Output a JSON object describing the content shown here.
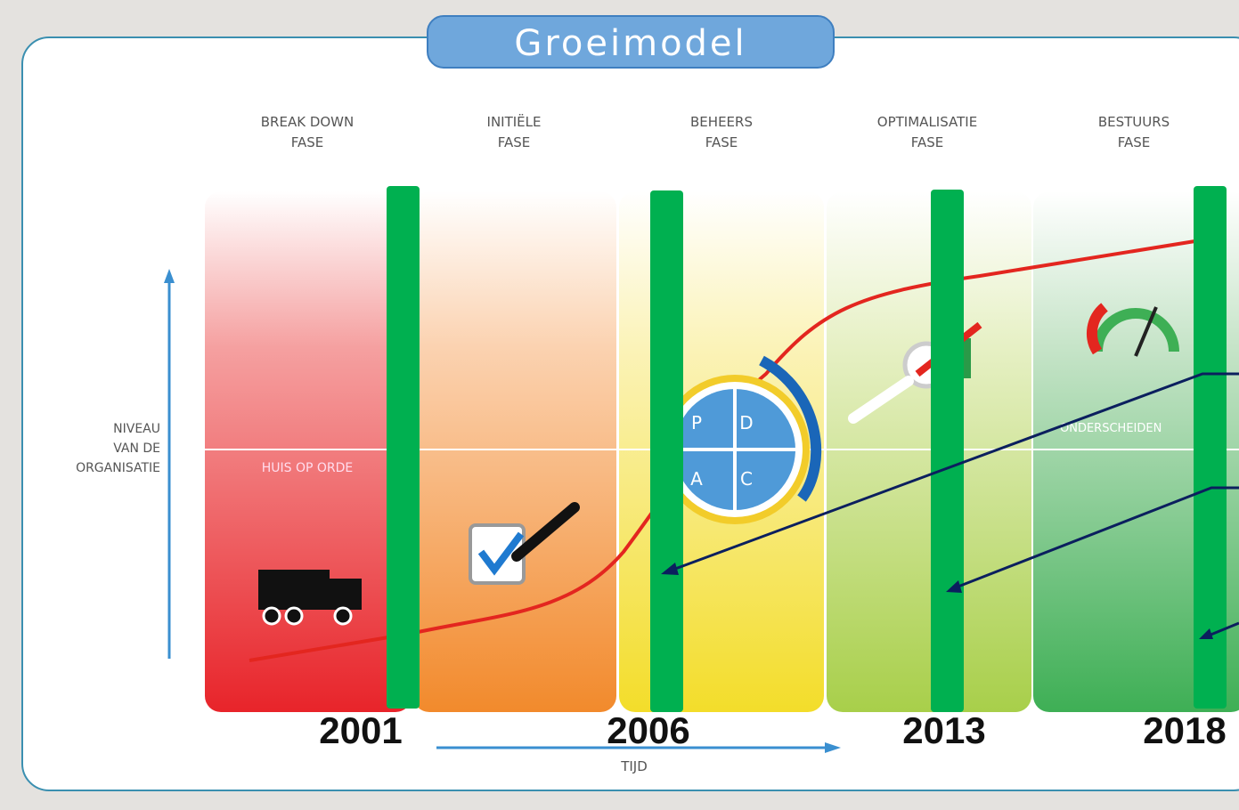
{
  "title": "Groeimodel",
  "phases": [
    {
      "line1": "BREAK DOWN",
      "line2": "FASE"
    },
    {
      "line1": "INITIËLE",
      "line2": "FASE"
    },
    {
      "line1": "BEHEERS",
      "line2": "FASE"
    },
    {
      "line1": "OPTIMALISATIE",
      "line2": "FASE"
    },
    {
      "line1": "BESTUURS",
      "line2": "FASE"
    }
  ],
  "y_axis_label": [
    "NIVEAU",
    "VAN DE",
    "ORGANISATIE"
  ],
  "x_axis_label": "TIJD",
  "zone_labels": [
    "HUIS OP ORDE",
    "ONDERSCHEIDEN"
  ],
  "pdca": [
    "P",
    "D",
    "A",
    "C"
  ],
  "years": [
    "2001",
    "2006",
    "2013",
    "2018"
  ]
}
